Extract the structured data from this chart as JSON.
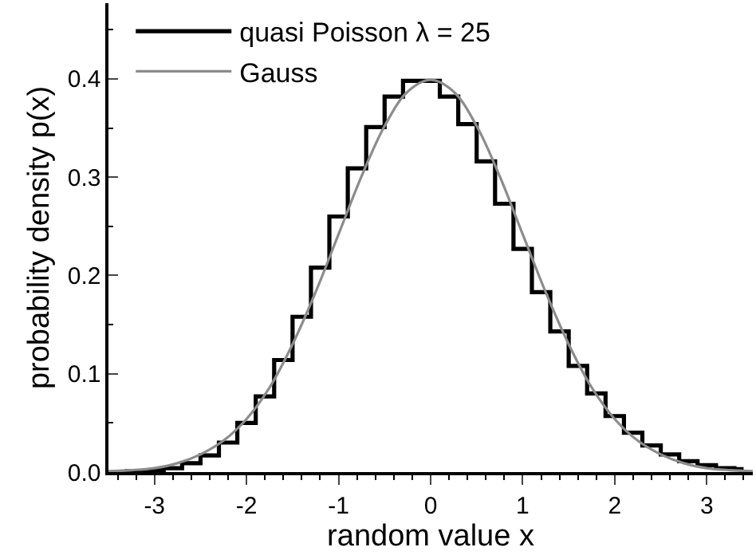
{
  "chart_data": {
    "type": "line",
    "xlabel": "random value x",
    "ylabel": "probability density p(x)",
    "xlim": [
      -3.5,
      3.5
    ],
    "ylim": [
      0,
      0.477
    ],
    "xticks": [
      -3,
      -2,
      -1,
      0,
      1,
      2,
      3
    ],
    "yticks": [
      {
        "value": 0,
        "label": "0.0"
      },
      {
        "value": 0.1,
        "label": "0.1"
      },
      {
        "value": 0.2,
        "label": "0.2"
      },
      {
        "value": 0.3,
        "label": "0.3"
      },
      {
        "value": 0.4,
        "label": "0.4"
      }
    ],
    "legend": "top left",
    "marker": "none",
    "series": [
      {
        "name": "quasi Poisson λ = 25",
        "type": "step",
        "color": "#000000",
        "x": [
          -3.4,
          -3.2,
          -3.0,
          -2.8,
          -2.6,
          -2.4,
          -2.2,
          -2.0,
          -1.8,
          -1.6,
          -1.4,
          -1.2,
          -1.0,
          -0.8,
          -0.6,
          -0.4,
          -0.2,
          0.0,
          0.2,
          0.4,
          0.6,
          0.8,
          1.0,
          1.2,
          1.4,
          1.6,
          1.8,
          2.0,
          2.2,
          2.4,
          2.6,
          2.8,
          3.0,
          3.2,
          3.4
        ],
        "values": [
          0.0,
          0.001,
          0.002,
          0.004,
          0.009,
          0.017,
          0.03,
          0.05,
          0.077,
          0.114,
          0.158,
          0.208,
          0.26,
          0.309,
          0.351,
          0.382,
          0.398,
          0.398,
          0.382,
          0.354,
          0.316,
          0.273,
          0.227,
          0.183,
          0.143,
          0.108,
          0.08,
          0.057,
          0.04,
          0.027,
          0.018,
          0.011,
          0.007,
          0.004,
          0.003
        ]
      },
      {
        "name": "Gauss",
        "color": "#8c8c8c",
        "x": [
          -3.5,
          -3.25,
          -3.0,
          -2.75,
          -2.5,
          -2.25,
          -2.0,
          -1.75,
          -1.5,
          -1.25,
          -1.0,
          -0.75,
          -0.5,
          -0.25,
          0.0,
          0.25,
          0.5,
          0.75,
          1.0,
          1.25,
          1.5,
          1.75,
          2.0,
          2.25,
          2.5,
          2.75,
          3.0,
          3.25,
          3.5
        ],
        "values": [
          0.001,
          0.002,
          0.004,
          0.009,
          0.018,
          0.032,
          0.054,
          0.086,
          0.13,
          0.183,
          0.242,
          0.301,
          0.352,
          0.387,
          0.399,
          0.387,
          0.352,
          0.301,
          0.242,
          0.183,
          0.13,
          0.086,
          0.054,
          0.032,
          0.018,
          0.009,
          0.004,
          0.002,
          0.001
        ]
      }
    ]
  }
}
